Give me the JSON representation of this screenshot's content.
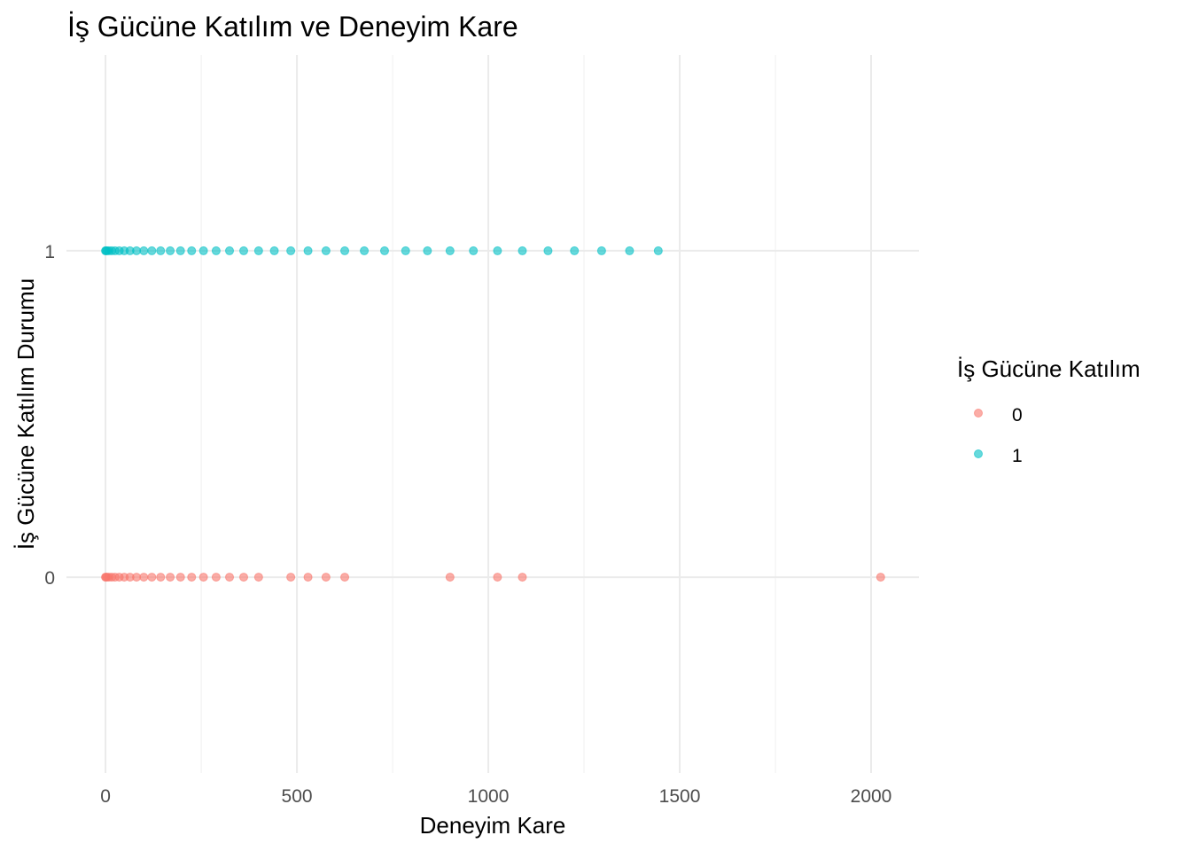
{
  "chart_data": {
    "type": "scatter",
    "title": "İş Gücüne Katılım ve Deneyim Kare",
    "xlabel": "Deneyim Kare",
    "ylabel": "İş Gücüne Katılım Durumu",
    "xlim": [
      -102,
      2125
    ],
    "ylim": [
      -0.6,
      1.6
    ],
    "x_ticks": [
      0,
      500,
      1000,
      1500,
      2000
    ],
    "x_minor": [
      250,
      750,
      1250,
      1750
    ],
    "y_ticks": [
      0,
      1
    ],
    "grid": true,
    "legend": {
      "title": "İş Gücüne Katılım",
      "placement": "right",
      "entries": [
        "0",
        "1"
      ]
    },
    "colors": {
      "0": "#F8766D",
      "1": "#00BFC4"
    },
    "series": [
      {
        "name": "0",
        "y": 0,
        "x": [
          0,
          1,
          4,
          9,
          16,
          25,
          36,
          49,
          64,
          81,
          100,
          121,
          144,
          169,
          196,
          225,
          256,
          289,
          324,
          361,
          400,
          484,
          529,
          576,
          625,
          900,
          1024,
          1089,
          2025
        ]
      },
      {
        "name": "1",
        "y": 1,
        "x": [
          0,
          1,
          4,
          9,
          16,
          25,
          36,
          49,
          64,
          81,
          100,
          121,
          144,
          169,
          196,
          225,
          256,
          289,
          324,
          361,
          400,
          441,
          484,
          529,
          576,
          625,
          676,
          729,
          784,
          841,
          900,
          961,
          1024,
          1089,
          1156,
          1225,
          1296,
          1369,
          1444
        ]
      }
    ]
  }
}
